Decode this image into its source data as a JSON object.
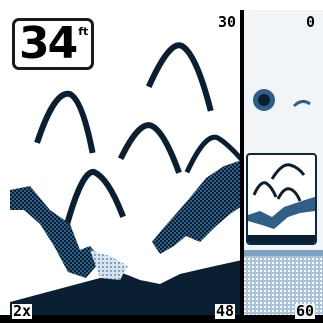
{
  "depth": {
    "value": "34",
    "unit": "ft"
  },
  "scale": {
    "main_top": "30",
    "main_bottom": "48",
    "zoom_top": "0",
    "zoom_bottom": "60",
    "zoom_factor": "2x"
  },
  "colors": {
    "return_strong": "#0b1f33",
    "return_medium": "#2f5f86",
    "return_light": "#a9c3da",
    "background": "#ffffff",
    "frame": "#000000"
  }
}
